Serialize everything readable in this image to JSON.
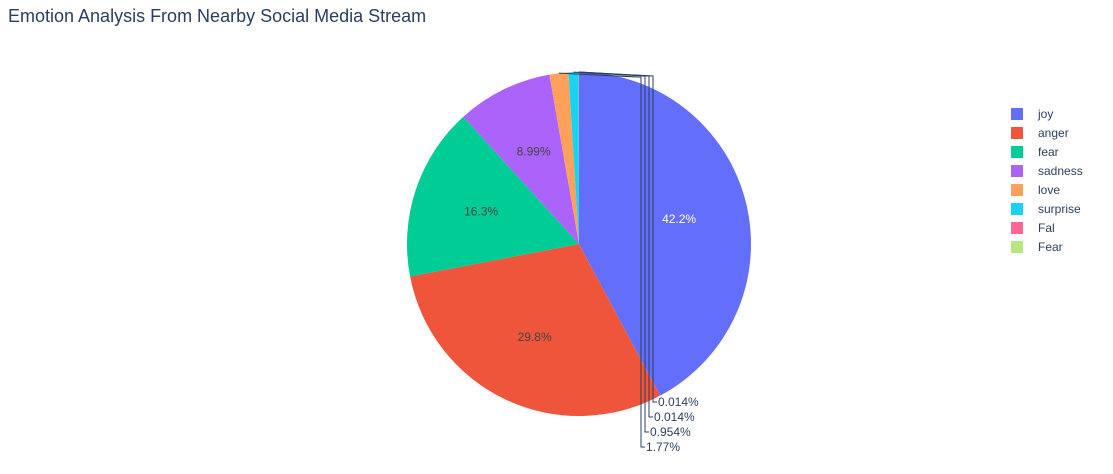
{
  "chart_data": {
    "type": "pie",
    "title": "Emotion Analysis From Nearby Social Media Stream",
    "legend_position": "top-right",
    "slices": [
      {
        "name": "joy",
        "value": 42.2,
        "label": "42.2%",
        "color": "#636efa"
      },
      {
        "name": "anger",
        "value": 29.8,
        "label": "29.8%",
        "color": "#ef553b"
      },
      {
        "name": "fear",
        "value": 16.3,
        "label": "16.3%",
        "color": "#00cc96"
      },
      {
        "name": "sadness",
        "value": 8.99,
        "label": "8.99%",
        "color": "#ab63fa"
      },
      {
        "name": "love",
        "value": 1.77,
        "label": "1.77%",
        "color": "#ffa15a"
      },
      {
        "name": "surprise",
        "value": 0.954,
        "label": "0.954%",
        "color": "#19d3f3"
      },
      {
        "name": "Fal",
        "value": 0.014,
        "label": "0.014%",
        "color": "#ff6692"
      },
      {
        "name": "Fear",
        "value": 0.014,
        "label": "0.014%",
        "color": "#b6e880"
      }
    ]
  }
}
